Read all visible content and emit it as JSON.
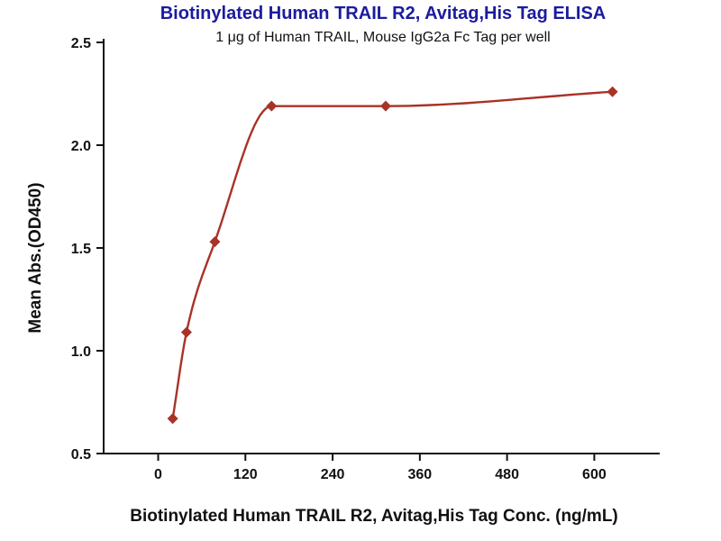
{
  "chart_data": {
    "type": "scatter",
    "title": "Biotinylated Human TRAIL R2, Avitag,His Tag ELISA",
    "subtitle": "1 μg of Human TRAIL, Mouse IgG2a Fc Tag per well",
    "xlabel": "Biotinylated Human TRAIL R2, Avitag,His Tag Conc. (ng/mL)",
    "ylabel": "Mean Abs.(OD450)",
    "x": [
      20,
      39,
      78,
      156,
      313,
      625
    ],
    "y": [
      0.67,
      1.09,
      1.53,
      2.19,
      2.19,
      2.26
    ],
    "xticks": [
      0,
      120,
      240,
      360,
      480,
      600
    ],
    "yticks": [
      0.5,
      1.0,
      1.5,
      2.0,
      2.5
    ],
    "xlim": [
      -75,
      690
    ],
    "ylim": [
      0.5,
      2.5
    ],
    "grid": false,
    "legend": "none",
    "line_color": "#a93226",
    "marker_color": "#a93226",
    "marker": "diamond",
    "axis_color": "#111111",
    "title_color": "#1b1b9e"
  }
}
